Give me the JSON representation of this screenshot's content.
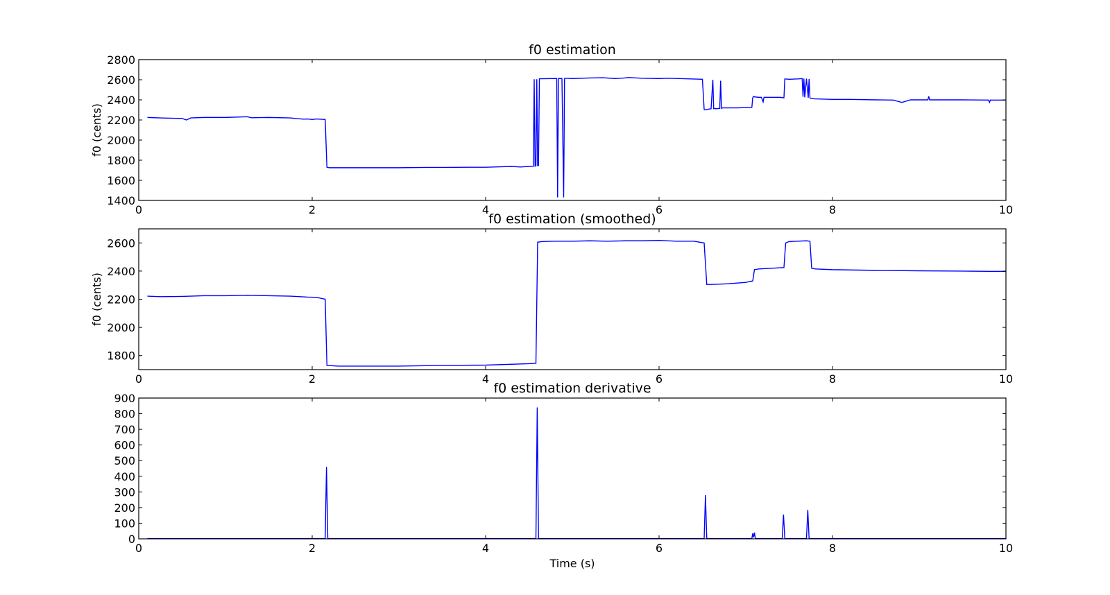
{
  "figure": {
    "line_color": "#0000ff",
    "background": "#ffffff"
  },
  "chart_data": [
    {
      "type": "line",
      "title": "f0 estimation",
      "xlabel": "",
      "ylabel": "f0 (cents)",
      "xlim": [
        0,
        10
      ],
      "ylim": [
        1400,
        2800
      ],
      "xticks": [
        "0",
        "2",
        "4",
        "6",
        "8",
        "10"
      ],
      "yticks": [
        "1400",
        "1600",
        "1800",
        "2000",
        "2200",
        "2400",
        "2600",
        "2800"
      ],
      "grid": false,
      "series": [
        {
          "x": [
            0.1,
            0.25,
            0.5,
            0.55,
            0.6,
            0.75,
            1.0,
            1.25,
            1.3,
            1.5,
            1.75,
            1.8,
            1.9,
            1.95,
            2.0,
            2.05,
            2.15,
            2.17,
            2.2,
            2.5,
            3.0,
            3.3,
            3.5,
            3.8,
            4.0,
            4.3,
            4.4,
            4.5,
            4.55,
            4.56,
            4.57,
            4.58,
            4.59,
            4.6,
            4.61,
            4.62,
            4.63,
            4.64,
            4.8,
            4.82,
            4.83,
            4.84,
            4.85,
            4.88,
            4.9,
            4.91,
            4.92,
            5.0,
            5.2,
            5.35,
            5.5,
            5.6,
            5.65,
            5.8,
            6.0,
            6.1,
            6.3,
            6.5,
            6.52,
            6.53,
            6.55,
            6.6,
            6.62,
            6.63,
            6.64,
            6.65,
            6.66,
            6.7,
            6.71,
            6.72,
            6.73,
            6.9,
            7.07,
            7.08,
            7.09,
            7.1,
            7.15,
            7.18,
            7.2,
            7.21,
            7.25,
            7.4,
            7.44,
            7.45,
            7.5,
            7.6,
            7.65,
            7.66,
            7.67,
            7.68,
            7.7,
            7.72,
            7.73,
            7.74,
            7.75,
            7.8,
            8.0,
            8.2,
            8.5,
            8.7,
            8.8,
            8.9,
            9.0,
            9.1,
            9.11,
            9.12,
            9.5,
            9.8,
            9.81,
            9.82,
            10.0
          ],
          "y": [
            2225,
            2220,
            2215,
            2200,
            2220,
            2225,
            2225,
            2232,
            2222,
            2225,
            2220,
            2215,
            2208,
            2210,
            2205,
            2210,
            2205,
            1730,
            1725,
            1725,
            1725,
            1728,
            1728,
            1730,
            1730,
            1738,
            1732,
            1738,
            1740,
            2605,
            1740,
            1745,
            2605,
            1745,
            1748,
            2610,
            2610,
            2610,
            2612,
            2612,
            1430,
            2612,
            2612,
            2612,
            1430,
            2612,
            2615,
            2612,
            2618,
            2620,
            2612,
            2618,
            2622,
            2615,
            2612,
            2615,
            2610,
            2605,
            2305,
            2300,
            2305,
            2312,
            2600,
            2312,
            2315,
            2312,
            2312,
            2315,
            2590,
            2315,
            2320,
            2320,
            2325,
            2420,
            2435,
            2430,
            2425,
            2425,
            2380,
            2425,
            2425,
            2425,
            2420,
            2608,
            2605,
            2608,
            2612,
            2430,
            2612,
            2425,
            2612,
            2420,
            2608,
            2420,
            2415,
            2410,
            2405,
            2405,
            2400,
            2398,
            2375,
            2400,
            2400,
            2400,
            2435,
            2400,
            2400,
            2398,
            2375,
            2398,
            2398
          ]
        }
      ]
    },
    {
      "type": "line",
      "title": "f0 estimation (smoothed)",
      "xlabel": "",
      "ylabel": "f0 (cents)",
      "xlim": [
        0,
        10
      ],
      "ylim": [
        1700,
        2700
      ],
      "xticks": [
        "0",
        "2",
        "4",
        "6",
        "8",
        "10"
      ],
      "yticks": [
        "1800",
        "2000",
        "2200",
        "2400",
        "2600"
      ],
      "grid": false,
      "series": [
        {
          "x": [
            0.1,
            0.25,
            0.5,
            0.75,
            1.0,
            1.25,
            1.5,
            1.75,
            1.95,
            2.05,
            2.15,
            2.17,
            2.3,
            2.5,
            3.0,
            3.5,
            4.0,
            4.5,
            4.58,
            4.6,
            4.65,
            4.8,
            5.0,
            5.2,
            5.4,
            5.6,
            5.8,
            6.0,
            6.2,
            6.4,
            6.52,
            6.55,
            6.6,
            6.8,
            7.0,
            7.08,
            7.1,
            7.15,
            7.3,
            7.44,
            7.46,
            7.5,
            7.7,
            7.74,
            7.76,
            7.8,
            8.0,
            8.5,
            9.0,
            9.5,
            9.8,
            10.0
          ],
          "y": [
            2222,
            2218,
            2220,
            2225,
            2225,
            2228,
            2225,
            2222,
            2215,
            2213,
            2200,
            1730,
            1725,
            1725,
            1725,
            1730,
            1732,
            1742,
            1745,
            2605,
            2610,
            2612,
            2612,
            2615,
            2612,
            2615,
            2615,
            2618,
            2612,
            2612,
            2600,
            2305,
            2305,
            2310,
            2320,
            2330,
            2410,
            2415,
            2420,
            2425,
            2600,
            2610,
            2615,
            2612,
            2420,
            2415,
            2410,
            2405,
            2402,
            2400,
            2398,
            2398
          ]
        }
      ]
    },
    {
      "type": "line",
      "title": "f0 estimation derivative",
      "xlabel": "Time (s)",
      "ylabel": "",
      "xlim": [
        0,
        10
      ],
      "ylim": [
        0,
        900
      ],
      "xticks": [
        "0",
        "2",
        "4",
        "6",
        "8",
        "10"
      ],
      "yticks": [
        "0",
        "100",
        "200",
        "300",
        "400",
        "500",
        "600",
        "700",
        "800",
        "900"
      ],
      "grid": false,
      "series": [
        {
          "x": [
            0.1,
            2.15,
            2.165,
            2.18,
            4.58,
            4.595,
            4.61,
            6.52,
            6.535,
            6.55,
            7.07,
            7.08,
            7.09,
            7.1,
            7.11,
            7.42,
            7.435,
            7.45,
            7.7,
            7.715,
            7.73,
            10.0
          ],
          "y": [
            2,
            2,
            460,
            2,
            2,
            840,
            2,
            2,
            280,
            2,
            2,
            35,
            10,
            40,
            2,
            2,
            155,
            2,
            2,
            185,
            2,
            2
          ]
        }
      ]
    }
  ]
}
